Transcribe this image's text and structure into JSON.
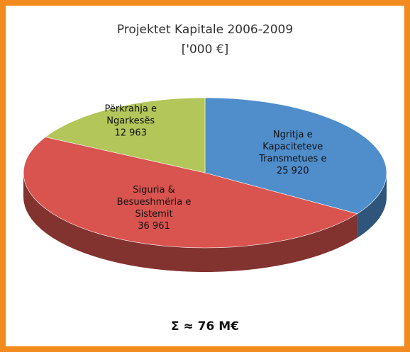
{
  "chart_data": {
    "type": "pie",
    "title": "Projektet Kapitale 2006-2009",
    "subtitle": "['000 €]",
    "categories": [
      "Ngritja e Kapaciteteve Transmetues e",
      "Siguria & Besueshmëria e Sistemit",
      "Përkrahja e Ngarkesës"
    ],
    "values": [
      25920,
      36961,
      12963
    ],
    "value_labels": [
      "25 920",
      "36 961",
      "12 963"
    ],
    "colors": [
      "#4f8dcb",
      "#d9534f",
      "#b3c65a"
    ],
    "annotation": "Σ ≈ 76 M€"
  }
}
